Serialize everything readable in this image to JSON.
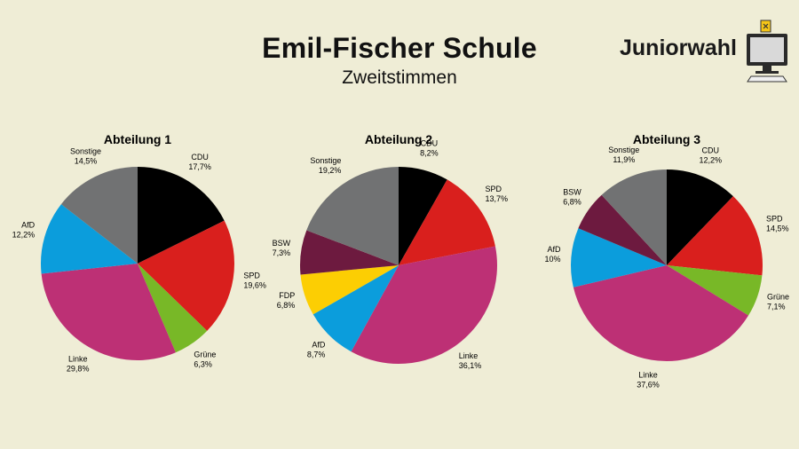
{
  "header": {
    "title": "Emil-Fischer Schule",
    "subtitle": "Zweitstimmen",
    "logo_text": "Juniorwahl"
  },
  "colors": {
    "CDU": "#000000",
    "SPD": "#d91f1d",
    "Grüne": "#78b827",
    "Linke": "#bd3075",
    "AfD": "#0b9ddc",
    "FDP": "#fcce03",
    "BSW": "#6d1a3f",
    "Sonstige": "#717273"
  },
  "chart_data": [
    {
      "type": "pie",
      "title": "Abteilung 1",
      "slices": [
        {
          "label": "CDU",
          "value": 17.7,
          "text": "17,7%"
        },
        {
          "label": "SPD",
          "value": 19.6,
          "text": "19,6%"
        },
        {
          "label": "Grüne",
          "value": 6.3,
          "text": "6,3%"
        },
        {
          "label": "Linke",
          "value": 29.8,
          "text": "29,8%"
        },
        {
          "label": "AfD",
          "value": 12.2,
          "text": "12,2%"
        },
        {
          "label": "Sonstige",
          "value": 14.5,
          "text": "14,5%"
        }
      ]
    },
    {
      "type": "pie",
      "title": "Abteilung 2",
      "slices": [
        {
          "label": "CDU",
          "value": 8.2,
          "text": "8,2%"
        },
        {
          "label": "SPD",
          "value": 13.7,
          "text": "13,7%"
        },
        {
          "label": "Linke",
          "value": 36.1,
          "text": "36,1%"
        },
        {
          "label": "AfD",
          "value": 8.7,
          "text": "8,7%"
        },
        {
          "label": "FDP",
          "value": 6.8,
          "text": "6,8%"
        },
        {
          "label": "BSW",
          "value": 7.3,
          "text": "7,3%"
        },
        {
          "label": "Sonstige",
          "value": 19.2,
          "text": "19,2%"
        }
      ]
    },
    {
      "type": "pie",
      "title": "Abteilung 3",
      "slices": [
        {
          "label": "CDU",
          "value": 12.2,
          "text": "12,2%"
        },
        {
          "label": "SPD",
          "value": 14.5,
          "text": "14,5%"
        },
        {
          "label": "Grüne",
          "value": 7.1,
          "text": "7,1%"
        },
        {
          "label": "Linke",
          "value": 37.6,
          "text": "37,6%"
        },
        {
          "label": "AfD",
          "value": 10,
          "text": "10%"
        },
        {
          "label": "BSW",
          "value": 6.8,
          "text": "6,8%"
        },
        {
          "label": "Sonstige",
          "value": 11.9,
          "text": "11,9%"
        }
      ]
    }
  ]
}
